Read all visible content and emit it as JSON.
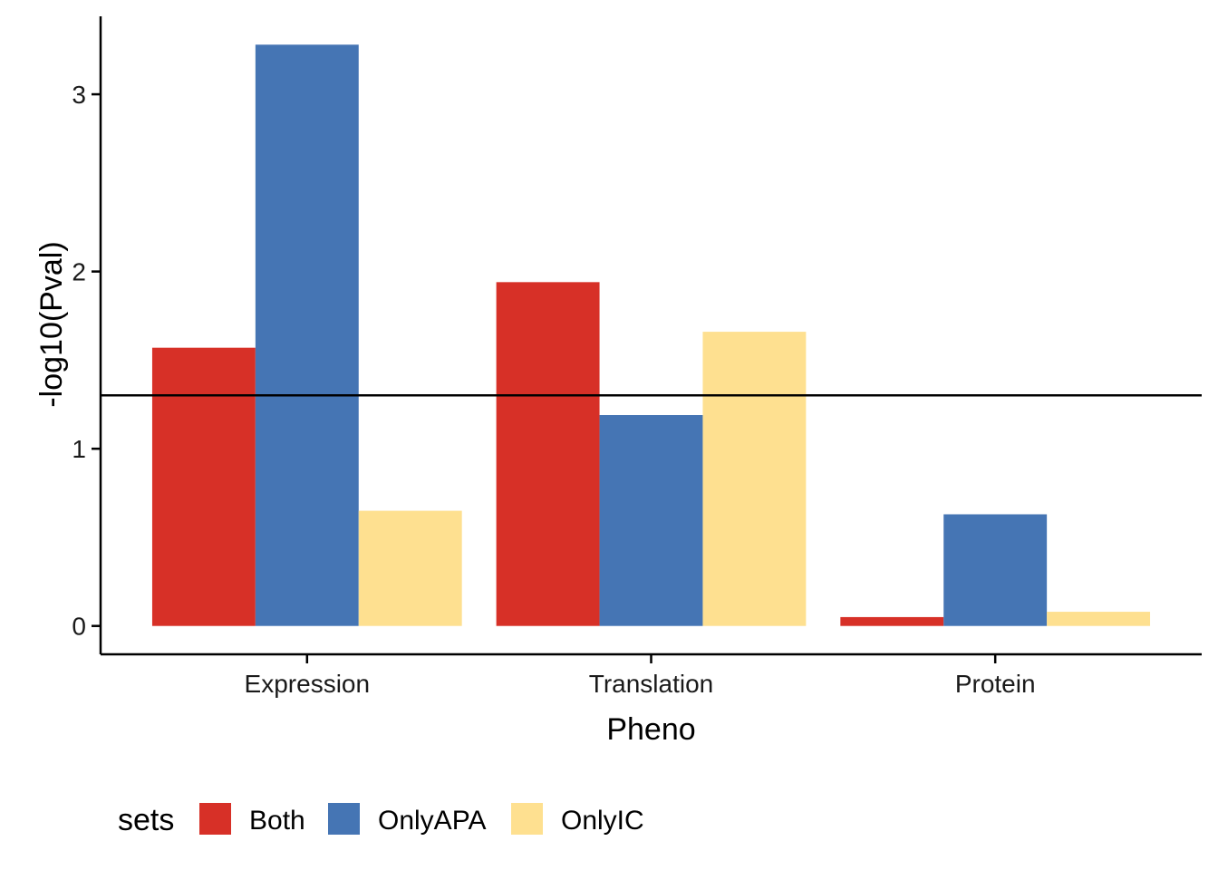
{
  "chart_data": {
    "type": "bar",
    "xlabel": "Pheno",
    "ylabel": "-log10(Pval)",
    "categories": [
      "Expression",
      "Translation",
      "Protein"
    ],
    "series": [
      {
        "name": "Both",
        "color": "#d73027",
        "values": [
          1.57,
          1.94,
          0.05
        ]
      },
      {
        "name": "OnlyAPA",
        "color": "#4575b4",
        "values": [
          3.28,
          1.19,
          0.63
        ]
      },
      {
        "name": "OnlyIC",
        "color": "#fee090",
        "values": [
          0.65,
          1.66,
          0.08
        ]
      }
    ],
    "yticks": [
      0,
      1,
      2,
      3
    ],
    "ylim": [
      -0.16,
      3.44
    ],
    "reference_line": {
      "y": 1.301
    },
    "legend": {
      "title": "sets",
      "position": "bottom-left"
    },
    "grid": false
  }
}
